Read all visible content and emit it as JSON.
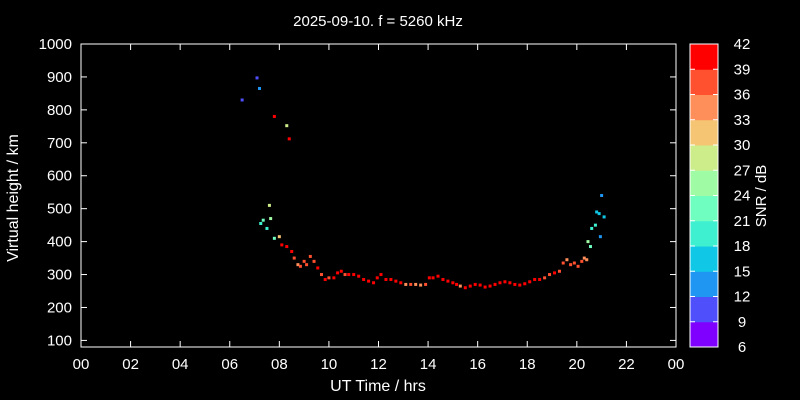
{
  "chart_data": {
    "type": "scatter",
    "title": "2025-09-10. f = 5260 kHz",
    "xlabel": "UT Time / hrs",
    "ylabel": "Virtual height / km",
    "xlim": [
      0,
      24
    ],
    "ylim": [
      80,
      1000
    ],
    "xticks": [
      "00",
      "02",
      "04",
      "06",
      "08",
      "10",
      "12",
      "14",
      "16",
      "18",
      "20",
      "22",
      "00"
    ],
    "yticks": [
      100,
      200,
      300,
      400,
      500,
      600,
      700,
      800,
      900,
      1000
    ],
    "grid": false,
    "colorbar": {
      "label": "SNR / dB",
      "min": 6,
      "max": 42,
      "ticks": [
        6,
        9,
        12,
        15,
        18,
        21,
        24,
        27,
        30,
        33,
        36,
        39,
        42
      ],
      "colors": [
        "#8000ff",
        "#4f4ffc",
        "#1f96f2",
        "#10c8e6",
        "#3ef0d0",
        "#6ffdc0",
        "#a0fca4",
        "#cced8a",
        "#f6c573",
        "#ff8f5a",
        "#ff5030",
        "#ff0000"
      ]
    },
    "points": [
      {
        "x": 6.5,
        "y": 830,
        "snr": 10
      },
      {
        "x": 7.1,
        "y": 897,
        "snr": 11
      },
      {
        "x": 7.2,
        "y": 865,
        "snr": 14
      },
      {
        "x": 7.8,
        "y": 780,
        "snr": 41
      },
      {
        "x": 8.3,
        "y": 752,
        "snr": 29
      },
      {
        "x": 8.4,
        "y": 712,
        "snr": 40
      },
      {
        "x": 7.6,
        "y": 510,
        "snr": 28
      },
      {
        "x": 7.25,
        "y": 455,
        "snr": 19
      },
      {
        "x": 7.35,
        "y": 465,
        "snr": 22
      },
      {
        "x": 7.65,
        "y": 470,
        "snr": 24
      },
      {
        "x": 7.5,
        "y": 440,
        "snr": 19
      },
      {
        "x": 7.8,
        "y": 410,
        "snr": 23
      },
      {
        "x": 8.0,
        "y": 415,
        "snr": 31
      },
      {
        "x": 8.1,
        "y": 390,
        "snr": 39
      },
      {
        "x": 8.3,
        "y": 385,
        "snr": 40
      },
      {
        "x": 8.5,
        "y": 370,
        "snr": 39
      },
      {
        "x": 8.6,
        "y": 350,
        "snr": 37
      },
      {
        "x": 8.75,
        "y": 330,
        "snr": 35
      },
      {
        "x": 8.85,
        "y": 325,
        "snr": 37
      },
      {
        "x": 9.0,
        "y": 340,
        "snr": 38
      },
      {
        "x": 9.1,
        "y": 330,
        "snr": 36
      },
      {
        "x": 9.25,
        "y": 355,
        "snr": 38
      },
      {
        "x": 9.4,
        "y": 340,
        "snr": 38
      },
      {
        "x": 9.55,
        "y": 320,
        "snr": 39
      },
      {
        "x": 9.7,
        "y": 300,
        "snr": 38
      },
      {
        "x": 9.85,
        "y": 285,
        "snr": 39
      },
      {
        "x": 10.0,
        "y": 290,
        "snr": 38
      },
      {
        "x": 10.2,
        "y": 290,
        "snr": 39
      },
      {
        "x": 10.35,
        "y": 305,
        "snr": 40
      },
      {
        "x": 10.5,
        "y": 310,
        "snr": 39
      },
      {
        "x": 10.65,
        "y": 300,
        "snr": 38
      },
      {
        "x": 10.8,
        "y": 300,
        "snr": 40
      },
      {
        "x": 11.0,
        "y": 300,
        "snr": 39
      },
      {
        "x": 11.2,
        "y": 295,
        "snr": 40
      },
      {
        "x": 11.4,
        "y": 285,
        "snr": 40
      },
      {
        "x": 11.6,
        "y": 280,
        "snr": 39
      },
      {
        "x": 11.8,
        "y": 275,
        "snr": 40
      },
      {
        "x": 11.95,
        "y": 290,
        "snr": 39
      },
      {
        "x": 12.1,
        "y": 300,
        "snr": 40
      },
      {
        "x": 12.3,
        "y": 285,
        "snr": 40
      },
      {
        "x": 12.5,
        "y": 285,
        "snr": 39
      },
      {
        "x": 12.7,
        "y": 280,
        "snr": 40
      },
      {
        "x": 12.9,
        "y": 275,
        "snr": 39
      },
      {
        "x": 13.1,
        "y": 270,
        "snr": 35
      },
      {
        "x": 13.3,
        "y": 270,
        "snr": 36
      },
      {
        "x": 13.5,
        "y": 270,
        "snr": 34
      },
      {
        "x": 13.7,
        "y": 268,
        "snr": 35
      },
      {
        "x": 13.9,
        "y": 270,
        "snr": 38
      },
      {
        "x": 14.05,
        "y": 290,
        "snr": 40
      },
      {
        "x": 14.2,
        "y": 290,
        "snr": 40
      },
      {
        "x": 14.4,
        "y": 295,
        "snr": 40
      },
      {
        "x": 14.6,
        "y": 285,
        "snr": 39
      },
      {
        "x": 14.8,
        "y": 280,
        "snr": 40
      },
      {
        "x": 15.0,
        "y": 275,
        "snr": 39
      },
      {
        "x": 15.15,
        "y": 270,
        "snr": 40
      },
      {
        "x": 15.3,
        "y": 265,
        "snr": 35
      },
      {
        "x": 15.5,
        "y": 260,
        "snr": 40
      },
      {
        "x": 15.7,
        "y": 265,
        "snr": 39
      },
      {
        "x": 15.9,
        "y": 270,
        "snr": 40
      },
      {
        "x": 16.1,
        "y": 268,
        "snr": 39
      },
      {
        "x": 16.3,
        "y": 262,
        "snr": 40
      },
      {
        "x": 16.5,
        "y": 265,
        "snr": 40
      },
      {
        "x": 16.7,
        "y": 270,
        "snr": 39
      },
      {
        "x": 16.9,
        "y": 275,
        "snr": 40
      },
      {
        "x": 17.1,
        "y": 278,
        "snr": 39
      },
      {
        "x": 17.3,
        "y": 275,
        "snr": 40
      },
      {
        "x": 17.5,
        "y": 270,
        "snr": 39
      },
      {
        "x": 17.7,
        "y": 268,
        "snr": 40
      },
      {
        "x": 17.9,
        "y": 272,
        "snr": 40
      },
      {
        "x": 18.1,
        "y": 278,
        "snr": 39
      },
      {
        "x": 18.3,
        "y": 285,
        "snr": 40
      },
      {
        "x": 18.5,
        "y": 285,
        "snr": 39
      },
      {
        "x": 18.7,
        "y": 290,
        "snr": 38
      },
      {
        "x": 18.9,
        "y": 300,
        "snr": 38
      },
      {
        "x": 19.1,
        "y": 305,
        "snr": 39
      },
      {
        "x": 19.3,
        "y": 310,
        "snr": 38
      },
      {
        "x": 19.45,
        "y": 335,
        "snr": 36
      },
      {
        "x": 19.6,
        "y": 345,
        "snr": 35
      },
      {
        "x": 19.75,
        "y": 330,
        "snr": 37
      },
      {
        "x": 19.9,
        "y": 335,
        "snr": 38
      },
      {
        "x": 20.05,
        "y": 325,
        "snr": 37
      },
      {
        "x": 20.2,
        "y": 340,
        "snr": 36
      },
      {
        "x": 20.3,
        "y": 350,
        "snr": 33
      },
      {
        "x": 20.4,
        "y": 345,
        "snr": 35
      },
      {
        "x": 20.45,
        "y": 400,
        "snr": 25
      },
      {
        "x": 20.55,
        "y": 385,
        "snr": 23
      },
      {
        "x": 20.6,
        "y": 440,
        "snr": 20
      },
      {
        "x": 20.75,
        "y": 450,
        "snr": 18
      },
      {
        "x": 20.8,
        "y": 490,
        "snr": 15
      },
      {
        "x": 20.9,
        "y": 485,
        "snr": 17
      },
      {
        "x": 20.95,
        "y": 415,
        "snr": 13
      },
      {
        "x": 21.0,
        "y": 540,
        "snr": 12
      },
      {
        "x": 21.1,
        "y": 475,
        "snr": 15
      }
    ]
  }
}
